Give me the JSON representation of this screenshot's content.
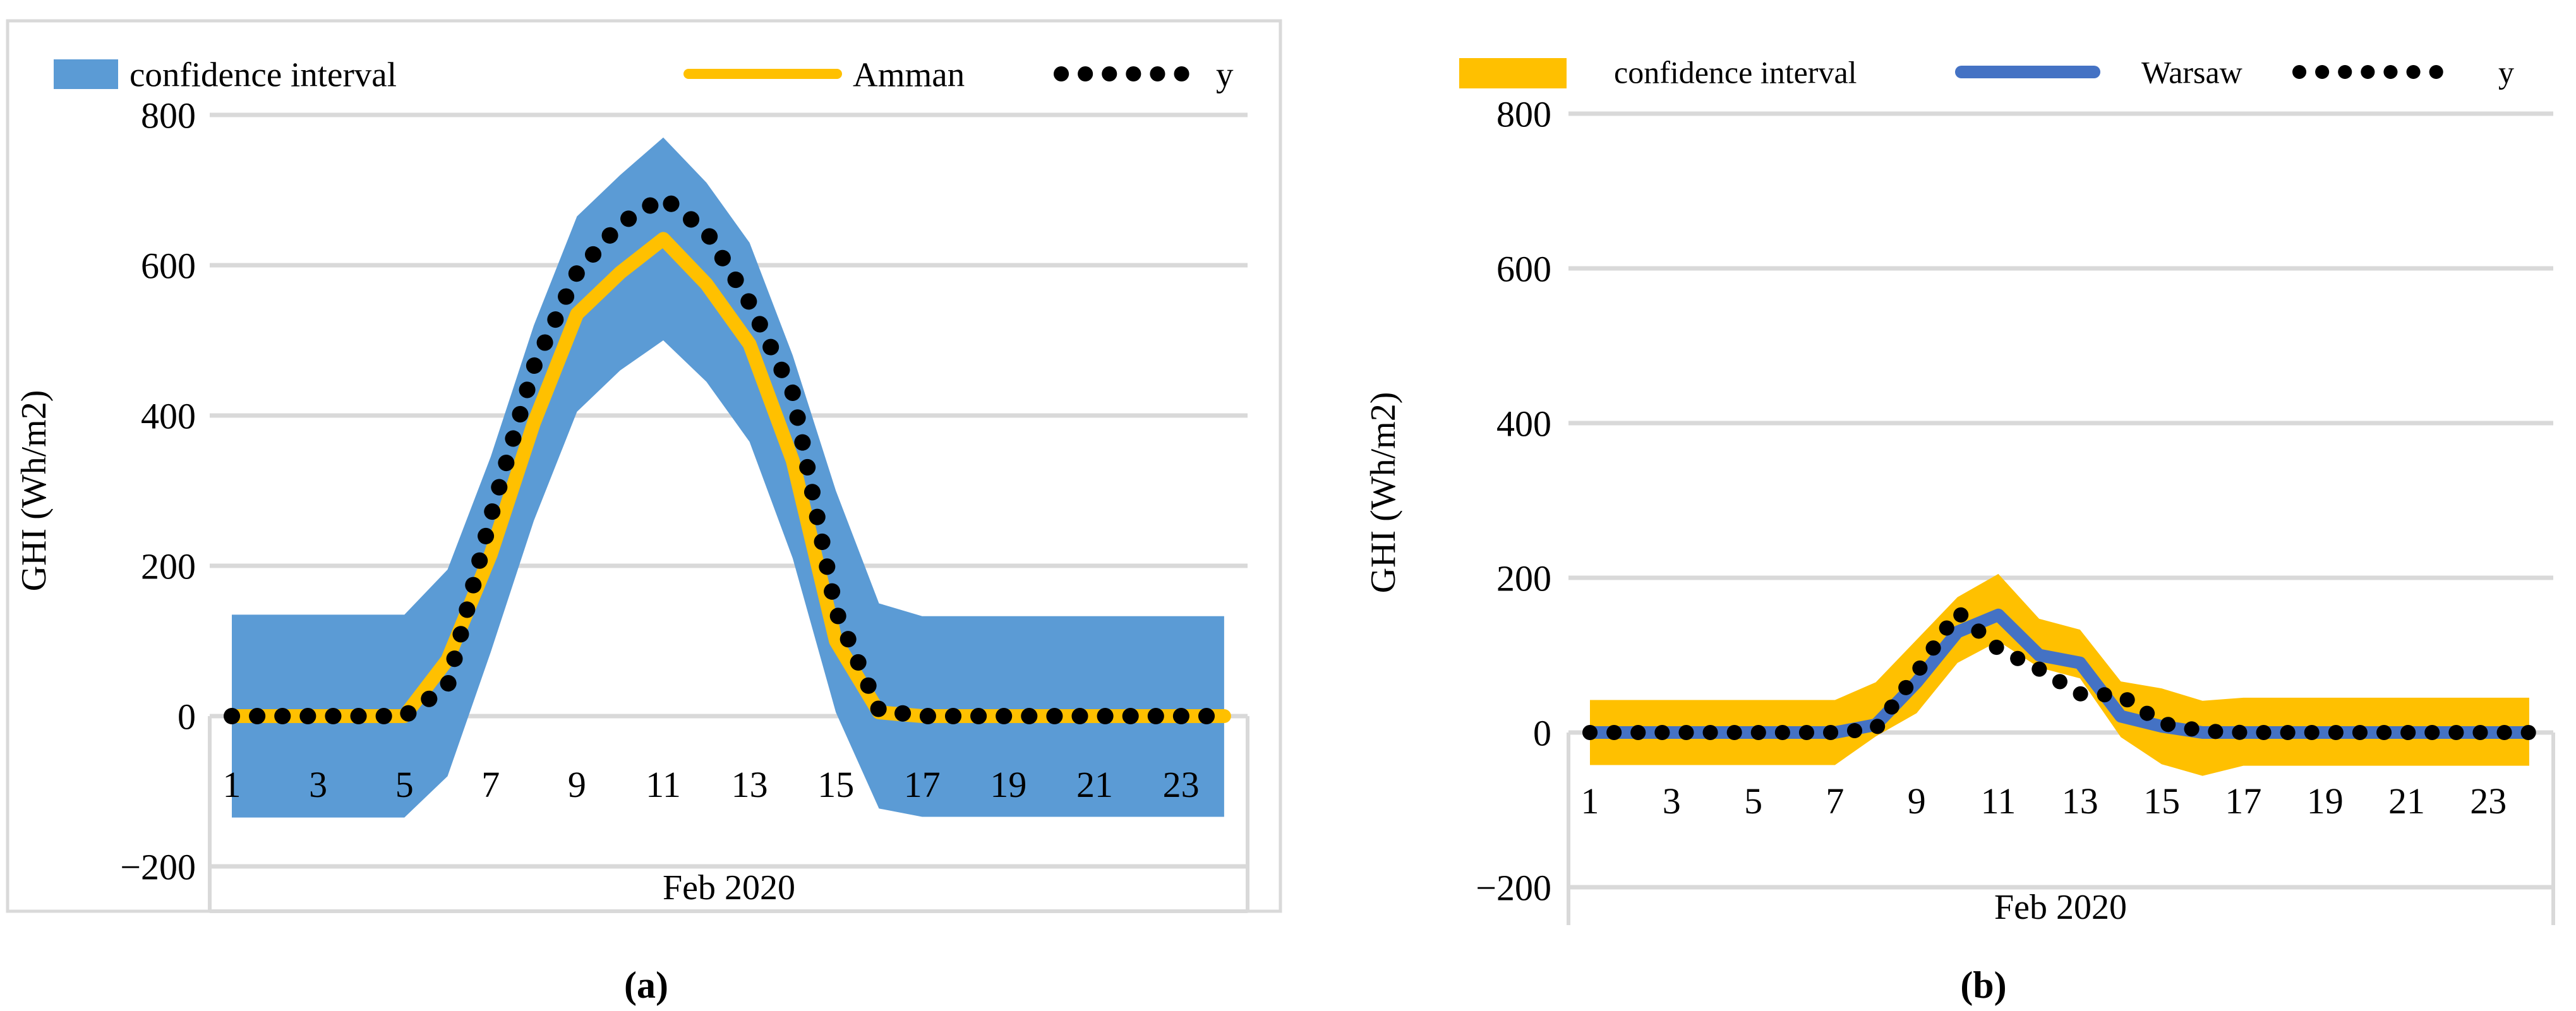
{
  "page": {
    "background": "#ffffff",
    "figure_name": "ghi-comparison-figure"
  },
  "chart_data": [
    {
      "type": "area",
      "panel": "a",
      "caption": "(a)",
      "xlabel": "Feb 2020",
      "ylabel": "GHI (Wh/m2)",
      "ylim": [
        -200,
        800
      ],
      "grid": true,
      "legend_position": "top",
      "colors": {
        "frame": "#d9d9d9",
        "band": "#5b9bd5",
        "line": "#ffc000",
        "dotted": "#000000"
      },
      "x": [
        1,
        2,
        3,
        4,
        5,
        6,
        7,
        8,
        9,
        10,
        11,
        12,
        13,
        14,
        15,
        16,
        17,
        18,
        19,
        20,
        21,
        22,
        23,
        24
      ],
      "x_tick_hours": [
        1,
        3,
        5,
        7,
        9,
        11,
        13,
        15,
        17,
        19,
        21,
        23
      ],
      "x_tick_labels": [
        "1",
        "3",
        "5",
        "7",
        "9",
        "11",
        "13",
        "15",
        "17",
        "19",
        "21",
        "23"
      ],
      "y_ticks": [
        800,
        600,
        400,
        200,
        0,
        -200
      ],
      "y_tick_labels": [
        "800",
        "600",
        "400",
        "200",
        "0",
        "−200"
      ],
      "series": [
        {
          "name": "confidence interval",
          "kind": "band",
          "color": "#5b9bd5",
          "upper": [
            135,
            135,
            135,
            135,
            135,
            195,
            345,
            520,
            665,
            720,
            770,
            710,
            630,
            480,
            300,
            150,
            133,
            133,
            133,
            133,
            133,
            133,
            133,
            133
          ],
          "lower": [
            -135,
            -135,
            -135,
            -135,
            -135,
            -80,
            85,
            260,
            405,
            460,
            500,
            445,
            365,
            210,
            5,
            -123,
            -134,
            -134,
            -134,
            -134,
            -134,
            -134,
            -134,
            -134
          ]
        },
        {
          "name": "Amman",
          "kind": "line",
          "color": "#ffc000",
          "values": [
            0,
            0,
            0,
            0,
            0,
            75,
            215,
            390,
            535,
            590,
            635,
            575,
            495,
            340,
            100,
            5,
            0,
            0,
            0,
            0,
            0,
            0,
            0,
            0
          ]
        },
        {
          "name": "y",
          "kind": "dotted",
          "color": "#000000",
          "values": [
            0,
            0,
            0,
            0,
            0,
            40,
            265,
            465,
            590,
            655,
            690,
            645,
            550,
            430,
            140,
            8,
            0,
            0,
            0,
            0,
            0,
            0,
            0,
            0
          ]
        }
      ]
    },
    {
      "type": "area",
      "panel": "b",
      "caption": "(b)",
      "xlabel": "Feb 2020",
      "ylabel": "GHI (Wh/m2)",
      "ylim": [
        -200,
        800
      ],
      "grid": true,
      "legend_position": "top",
      "colors": {
        "frame": "#d9d9d9",
        "band": "#ffc000",
        "line": "#4472c4",
        "dotted": "#000000"
      },
      "x": [
        1,
        2,
        3,
        4,
        5,
        6,
        7,
        8,
        9,
        10,
        11,
        12,
        13,
        14,
        15,
        16,
        17,
        18,
        19,
        20,
        21,
        22,
        23,
        24
      ],
      "x_tick_hours": [
        1,
        3,
        5,
        7,
        9,
        11,
        13,
        15,
        17,
        19,
        21,
        23
      ],
      "x_tick_labels": [
        "1",
        "3",
        "5",
        "7",
        "9",
        "11",
        "13",
        "15",
        "17",
        "19",
        "21",
        "23"
      ],
      "y_ticks": [
        800,
        600,
        400,
        200,
        0,
        -200
      ],
      "y_tick_labels": [
        "800",
        "600",
        "400",
        "200",
        "0",
        "−200"
      ],
      "series": [
        {
          "name": "confidence interval",
          "kind": "band",
          "color": "#ffc000",
          "upper": [
            42,
            42,
            42,
            42,
            42,
            42,
            42,
            65,
            120,
            175,
            205,
            147,
            133,
            66,
            57,
            41,
            45,
            45,
            45,
            45,
            45,
            45,
            45,
            45
          ],
          "lower": [
            -42,
            -42,
            -42,
            -42,
            -42,
            -42,
            -42,
            -5,
            25,
            90,
            118,
            84,
            70,
            -6,
            -41,
            -56,
            -43,
            -43,
            -43,
            -43,
            -43,
            -43,
            -43,
            -43
          ]
        },
        {
          "name": "Warsaw",
          "kind": "line",
          "color": "#4472c4",
          "values": [
            0,
            0,
            0,
            0,
            0,
            0,
            0,
            10,
            65,
            130,
            152,
            100,
            90,
            21,
            8,
            0,
            0,
            0,
            0,
            0,
            0,
            0,
            0,
            0
          ]
        },
        {
          "name": "y",
          "kind": "dotted",
          "color": "#000000",
          "values": [
            0,
            0,
            0,
            0,
            0,
            0,
            0,
            5,
            77,
            156,
            108,
            82,
            50,
            48,
            12,
            2,
            0,
            0,
            0,
            0,
            0,
            0,
            0,
            0
          ]
        }
      ]
    }
  ]
}
